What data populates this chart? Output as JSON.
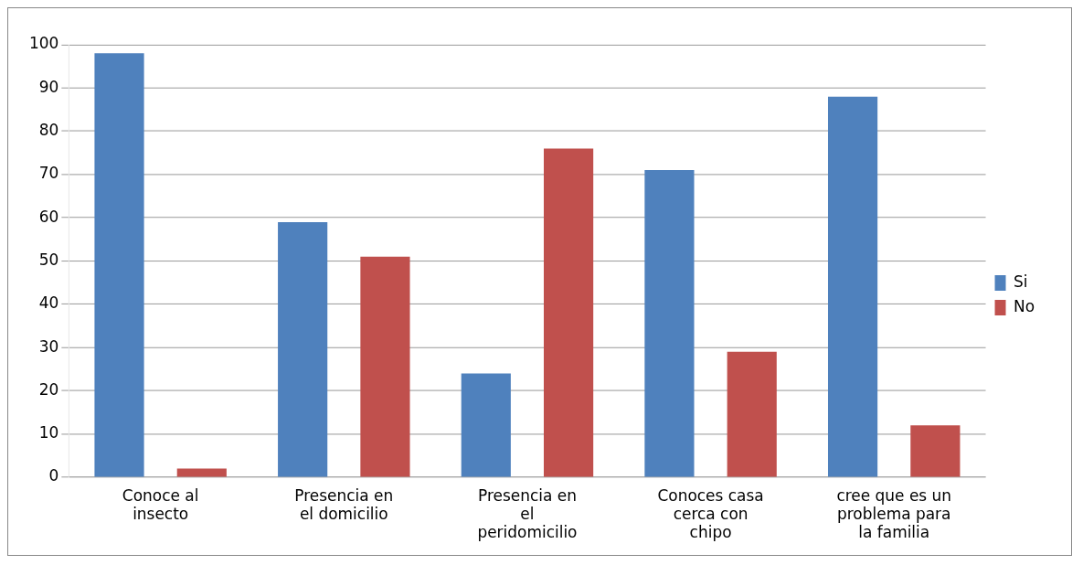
{
  "chart_data": {
    "type": "bar",
    "categories": [
      "Conoce al insecto",
      "Presencia en el domicilio",
      "Presencia en el peridomicilio",
      "Conoces casa cerca con chipo",
      "cree que es un problema para la familia"
    ],
    "series": [
      {
        "name": "Si",
        "color": "#4f81bd",
        "values": [
          98,
          59,
          24,
          71,
          88
        ]
      },
      {
        "name": "No",
        "color": "#c0504d",
        "values": [
          2,
          51,
          76,
          29,
          12
        ]
      }
    ],
    "ylim": [
      0,
      100
    ],
    "yticks": [
      0,
      10,
      20,
      30,
      40,
      50,
      60,
      70,
      80,
      90,
      100
    ],
    "grid": "y",
    "legend": "right"
  }
}
